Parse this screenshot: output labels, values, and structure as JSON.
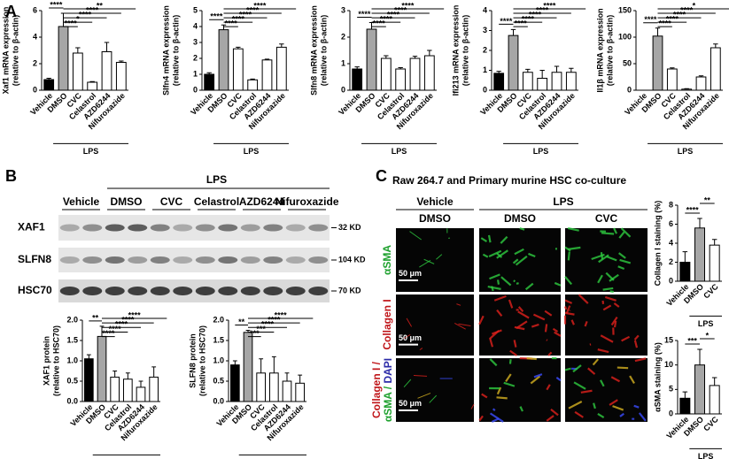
{
  "panels": {
    "a_label": "A",
    "b_label": "B",
    "c_label": "C"
  },
  "blot": {
    "group_label": "LPS",
    "lanes": [
      "Vehicle",
      "DMSO",
      "CVC",
      "Celastrol",
      "AZD6244",
      "Nifuroxazide"
    ],
    "rows": [
      {
        "protein": "XAF1",
        "size": "32 KD"
      },
      {
        "protein": "SLFN8",
        "size": "104 KD"
      },
      {
        "protein": "HSC70",
        "size": "70 KD"
      }
    ]
  },
  "imaging": {
    "title": "Raw 264.7 and Primary murine HSC co-culture",
    "group_vehicle": "Vehicle",
    "group_lps": "LPS",
    "columns": [
      "DMSO",
      "DMSO",
      "CVC"
    ],
    "rows": [
      "αSMA",
      "Collagen I"
    ],
    "merge_label": [
      "Collagen I /",
      "αSMA /",
      "DAPI"
    ],
    "scale_bars": [
      "50 μm",
      "50 μm",
      "50 μm"
    ]
  },
  "chart_data": [
    {
      "type": "bar",
      "ylabel": [
        "Xaf1 mRNA expression",
        "(relative to β-actin)"
      ],
      "categories": [
        "Vehicle",
        "DMSO",
        "CVC",
        "Celastrol",
        "AZD6244",
        "Nifuroxazide"
      ],
      "values": [
        0.8,
        4.8,
        2.8,
        0.6,
        2.9,
        2.1
      ],
      "errors": [
        0.1,
        1.0,
        0.4,
        0.05,
        0.7,
        0.1
      ],
      "bar_colors": [
        "#000000",
        "#a6a6a6",
        "#ffffff",
        "#ffffff",
        "#ffffff",
        "#ffffff"
      ],
      "ylim": [
        0,
        6
      ],
      "yticks": [
        0,
        2,
        4,
        6
      ],
      "significance": [
        "****",
        "****",
        "*",
        "****",
        "****",
        "**"
      ],
      "group_label": "LPS"
    },
    {
      "type": "bar",
      "ylabel": [
        "Slfn4 mRNA expression",
        "(relative to β-actin)"
      ],
      "categories": [
        "Vehicle",
        "DMSO",
        "CVC",
        "Celastrol",
        "AZD6244",
        "Nifuroxazide"
      ],
      "values": [
        1.0,
        3.8,
        2.6,
        0.65,
        1.9,
        2.7
      ],
      "errors": [
        0.1,
        0.3,
        0.1,
        0.05,
        0.05,
        0.2
      ],
      "bar_colors": [
        "#000000",
        "#a6a6a6",
        "#ffffff",
        "#ffffff",
        "#ffffff",
        "#ffffff"
      ],
      "ylim": [
        0,
        5
      ],
      "yticks": [
        0,
        1,
        2,
        3,
        4,
        5
      ],
      "significance": [
        "****",
        "****",
        "****",
        "****",
        "****",
        "****"
      ],
      "group_label": "LPS"
    },
    {
      "type": "bar",
      "ylabel": [
        "Slfn8 mRNA expression",
        "(relative to β-actin)"
      ],
      "categories": [
        "Vehicle",
        "DMSO",
        "CVC",
        "Celastrol",
        "AZD6244",
        "Nifuroxazide"
      ],
      "values": [
        0.8,
        2.3,
        1.2,
        0.8,
        1.2,
        1.3
      ],
      "errors": [
        0.08,
        0.25,
        0.1,
        0.05,
        0.08,
        0.2
      ],
      "bar_colors": [
        "#000000",
        "#a6a6a6",
        "#ffffff",
        "#ffffff",
        "#ffffff",
        "#ffffff"
      ],
      "ylim": [
        0,
        3
      ],
      "yticks": [
        0,
        1,
        2,
        3
      ],
      "significance": [
        "****",
        "****",
        "****",
        "****",
        "****",
        "****"
      ],
      "group_label": "LPS"
    },
    {
      "type": "bar",
      "ylabel": [
        "Ifi213 mRNA expression",
        "(relative to β-actin)"
      ],
      "categories": [
        "Vehicle",
        "DMSO",
        "CVC",
        "Celastrol",
        "AZD6244",
        "Nifuroxazide"
      ],
      "values": [
        0.85,
        2.75,
        0.9,
        0.6,
        0.9,
        0.9
      ],
      "errors": [
        0.1,
        0.3,
        0.15,
        0.4,
        0.3,
        0.2
      ],
      "bar_colors": [
        "#000000",
        "#a6a6a6",
        "#ffffff",
        "#ffffff",
        "#ffffff",
        "#ffffff"
      ],
      "ylim": [
        0,
        4
      ],
      "yticks": [
        0,
        1,
        2,
        3,
        4
      ],
      "significance": [
        "****",
        "****",
        "****",
        "****",
        "****",
        "****"
      ],
      "group_label": "LPS"
    },
    {
      "type": "bar",
      "ylabel": [
        "Il1β mRNA expression",
        "(relative to β-actin)"
      ],
      "categories": [
        "Vehicle",
        "DMSO",
        "CVC",
        "Celastrol",
        "AZD6244",
        "Nifuroxazide"
      ],
      "values": [
        0,
        102,
        40,
        2,
        25,
        80
      ],
      "errors": [
        0,
        15,
        2,
        1,
        2,
        7
      ],
      "bar_colors": [
        "#000000",
        "#a6a6a6",
        "#ffffff",
        "#ffffff",
        "#ffffff",
        "#ffffff"
      ],
      "ylim": [
        0,
        150
      ],
      "yticks": [
        0,
        50,
        100,
        150
      ],
      "significance": [
        "****",
        "****",
        "****",
        "****",
        "****",
        "*"
      ],
      "group_label": "LPS"
    },
    {
      "type": "bar",
      "ylabel": [
        "XAF1 protein",
        "(relative to HSC70)"
      ],
      "categories": [
        "Vehicle",
        "DMSO",
        "CVC",
        "Celastrol",
        "AZD6244",
        "Nifuroxazide"
      ],
      "values": [
        1.05,
        1.6,
        0.6,
        0.55,
        0.35,
        0.6
      ],
      "errors": [
        0.1,
        0.25,
        0.15,
        0.15,
        0.15,
        0.25
      ],
      "bar_colors": [
        "#000000",
        "#a6a6a6",
        "#ffffff",
        "#ffffff",
        "#ffffff",
        "#ffffff"
      ],
      "ylim": [
        0,
        2
      ],
      "yticks": [
        {
          "value": 0,
          "label": "0.0"
        },
        0.5,
        {
          "value": 1,
          "label": "1.0"
        },
        1.5,
        {
          "value": 2,
          "label": "2.0"
        }
      ],
      "significance": [
        "**",
        "****",
        "****",
        "****",
        "****",
        "****"
      ],
      "group_label": "LPS"
    },
    {
      "type": "bar",
      "ylabel": [
        "SLFN8 protein",
        "(relative to HSC70)"
      ],
      "categories": [
        "Vehicle",
        "DMSO",
        "CVC",
        "Celastrol",
        "AZD6244",
        "Nifuroxazide"
      ],
      "values": [
        0.9,
        1.7,
        0.7,
        0.7,
        0.5,
        0.45
      ],
      "errors": [
        0.1,
        0.05,
        0.35,
        0.4,
        0.2,
        0.2
      ],
      "bar_colors": [
        "#000000",
        "#a6a6a6",
        "#ffffff",
        "#ffffff",
        "#ffffff",
        "#ffffff"
      ],
      "ylim": [
        0,
        2
      ],
      "yticks": [
        {
          "value": 0,
          "label": "0.0"
        },
        0.5,
        {
          "value": 1,
          "label": "1.0"
        },
        1.5,
        {
          "value": 2,
          "label": "2.0"
        }
      ],
      "significance": [
        "**",
        "***",
        "***",
        "****",
        "****",
        "****"
      ],
      "group_label": "LPS"
    },
    {
      "type": "bar",
      "ylabel": [
        "Collagen I staining (%)"
      ],
      "categories": [
        "Vehicle",
        "DMSO",
        "CVC"
      ],
      "values": [
        2,
        5.6,
        3.8
      ],
      "errors": [
        1.1,
        1.0,
        0.6
      ],
      "bar_colors": [
        "#000000",
        "#a6a6a6",
        "#ffffff"
      ],
      "ylim": [
        0,
        8
      ],
      "yticks": [
        0,
        2,
        4,
        6,
        8
      ],
      "significance": [
        "****",
        "**"
      ],
      "group_label": "LPS"
    },
    {
      "type": "bar",
      "ylabel": [
        "αSMA staining (%)"
      ],
      "categories": [
        "Vehicle",
        "DMSO",
        "CVC"
      ],
      "values": [
        3.2,
        10,
        5.8
      ],
      "errors": [
        1.3,
        3.2,
        1.6
      ],
      "bar_colors": [
        "#000000",
        "#a6a6a6",
        "#ffffff"
      ],
      "ylim": [
        0,
        15
      ],
      "yticks": [
        0,
        5,
        10,
        15
      ],
      "significance": [
        "***",
        "*"
      ],
      "group_label": "LPS"
    }
  ]
}
